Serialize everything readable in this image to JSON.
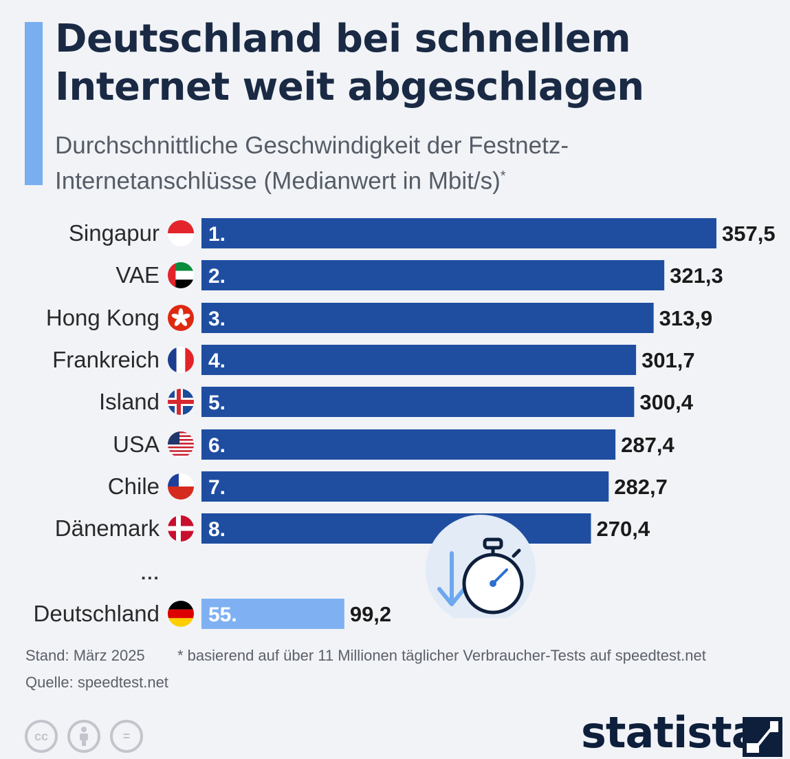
{
  "header": {
    "title_line1": "Deutschland bei schnellem",
    "title_line2": "Internet weit abgeschlagen",
    "subtitle_line1": "Durchschnittliche Geschwindigkeit der Festnetz-",
    "subtitle_line2": "Internetanschlüsse (Medianwert in Mbit/s)",
    "subtitle_mark": "*"
  },
  "chart_data": {
    "type": "bar",
    "orientation": "horizontal",
    "categories": [
      "Singapur",
      "VAE",
      "Hong Kong",
      "Frankreich",
      "Island",
      "USA",
      "Chile",
      "Dänemark",
      "Deutschland"
    ],
    "ranks": [
      "1.",
      "2.",
      "3.",
      "4.",
      "5.",
      "6.",
      "7.",
      "8.",
      "55."
    ],
    "values": [
      357.5,
      321.3,
      313.9,
      301.7,
      300.4,
      287.4,
      282.7,
      270.4,
      99.2
    ],
    "value_labels": [
      "357,5",
      "321,3",
      "313,9",
      "301,7",
      "300,4",
      "287,4",
      "282,7",
      "270,4",
      "99,2"
    ],
    "flags": [
      "flag-singapore",
      "flag-uae",
      "flag-hong-kong",
      "flag-france",
      "flag-iceland",
      "flag-usa",
      "flag-chile",
      "flag-denmark",
      "flag-germany"
    ],
    "xlim": [
      0,
      357.5
    ],
    "bar_color": "#1f4ea1",
    "highlight_color": "#7fb1f2",
    "highlight_index": 8,
    "gap_label": "..."
  },
  "footer": {
    "stand": "Stand: März 2025",
    "note": "* basierend auf über 11 Millionen täglicher Verbraucher-Tests auf speedtest.net",
    "quelle": "Quelle: speedtest.net",
    "license_icons": [
      "cc-icon",
      "attribution-icon",
      "no-derivatives-icon"
    ],
    "license_labels": [
      "cc",
      "",
      "="
    ],
    "brand": "statista"
  }
}
